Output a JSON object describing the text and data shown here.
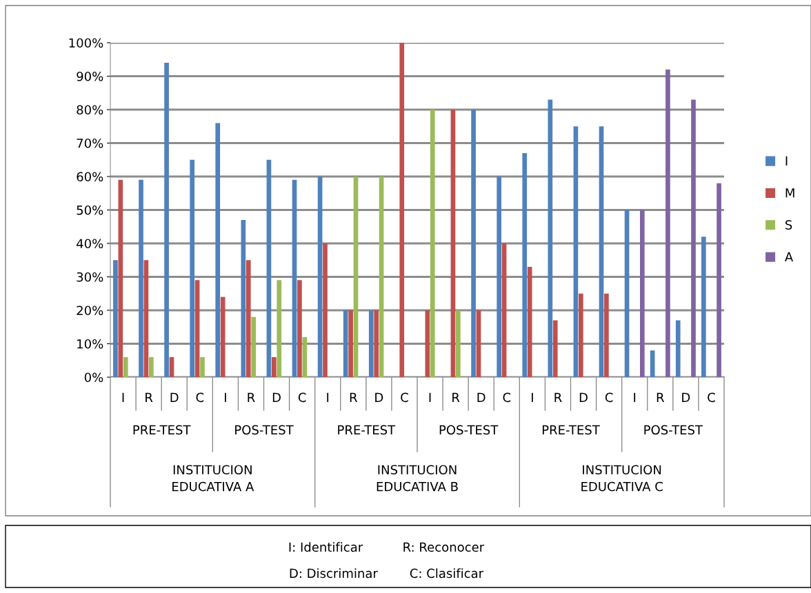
{
  "chart_data": {
    "type": "bar",
    "categories": [
      "I",
      "R",
      "D",
      "C",
      "I",
      "R",
      "D",
      "C",
      "I",
      "R",
      "D",
      "C",
      "I",
      "R",
      "D",
      "C",
      "I",
      "R",
      "D",
      "C",
      "I",
      "R",
      "D",
      "C"
    ],
    "series": [
      {
        "name": "I",
        "color": "#4f81bd",
        "values": [
          35,
          59,
          94,
          65,
          76,
          47,
          65,
          59,
          60,
          20,
          20,
          0,
          0,
          0,
          80,
          60,
          67,
          83,
          75,
          75,
          50,
          8,
          17,
          42
        ]
      },
      {
        "name": "M",
        "color": "#c0504d",
        "values": [
          59,
          35,
          6,
          29,
          24,
          35,
          6,
          29,
          40,
          20,
          20,
          100,
          20,
          80,
          20,
          40,
          33,
          17,
          25,
          25,
          0,
          0,
          0,
          0
        ]
      },
      {
        "name": "S",
        "color": "#9bbb59",
        "values": [
          6,
          6,
          0,
          6,
          0,
          18,
          29,
          12,
          0,
          60,
          60,
          0,
          80,
          20,
          0,
          0,
          0,
          0,
          0,
          0,
          0,
          0,
          0,
          0
        ]
      },
      {
        "name": "A",
        "color": "#8064a2",
        "values": [
          0,
          0,
          0,
          0,
          0,
          0,
          0,
          0,
          0,
          0,
          0,
          0,
          0,
          0,
          0,
          0,
          0,
          0,
          0,
          0,
          50,
          92,
          83,
          58
        ]
      }
    ],
    "ylim": [
      0,
      100
    ],
    "yticks": [
      {
        "value": 0,
        "label": "0%"
      },
      {
        "value": 10,
        "label": "10%"
      },
      {
        "value": 20,
        "label": "20%"
      },
      {
        "value": 30,
        "label": "30%"
      },
      {
        "value": 40,
        "label": "40%"
      },
      {
        "value": 50,
        "label": "50%"
      },
      {
        "value": 60,
        "label": "60%"
      },
      {
        "value": 70,
        "label": "70%"
      },
      {
        "value": 80,
        "label": "80%"
      },
      {
        "value": 90,
        "label": "90%"
      },
      {
        "value": 100,
        "label": "100%"
      }
    ],
    "grid": "y",
    "legend": "right",
    "annotations": [
      "PRE-TEST",
      "POS-TEST",
      "PRE-TEST",
      "POS-TEST",
      "PRE-TEST",
      "POS-TEST",
      "INSTITUCION\nEDUCATIVA A",
      "INSTITUCION\nEDUCATIVA B",
      "INSTITUCION\nEDUCATIVA C",
      "I: Identificar          R: Reconocer",
      "D: Discriminar        C: Clasificar"
    ]
  }
}
